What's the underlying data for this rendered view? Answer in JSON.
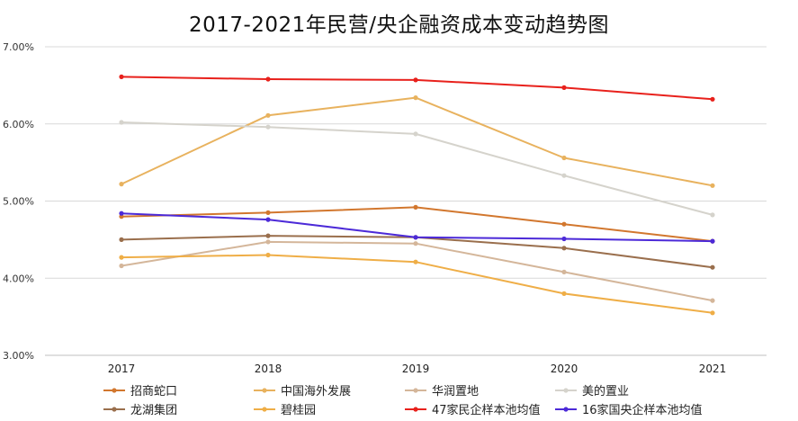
{
  "chart_data": {
    "type": "line",
    "title": "2017-2021年民营/央企融资成本变动趋势图",
    "xlabel": "",
    "ylabel": "",
    "x": [
      "2017",
      "2018",
      "2019",
      "2020",
      "2021"
    ],
    "ylim": [
      3.0,
      7.0
    ],
    "yticks": [
      "3.00%",
      "4.00%",
      "5.00%",
      "6.00%",
      "7.00%"
    ],
    "ytick_values": [
      3.0,
      4.0,
      5.0,
      6.0,
      7.0
    ],
    "grid": "horizontal",
    "legend_position": "bottom",
    "series": [
      {
        "name": "招商蛇口",
        "color": "#D2772E",
        "values": [
          4.8,
          4.85,
          4.92,
          4.7,
          4.48
        ]
      },
      {
        "name": "中国海外发展",
        "color": "#E8B25E",
        "values": [
          5.22,
          6.11,
          6.34,
          5.56,
          5.2
        ]
      },
      {
        "name": "华润置地",
        "color": "#D4B69A",
        "values": [
          4.16,
          4.47,
          4.45,
          4.08,
          3.71
        ]
      },
      {
        "name": "美的置业",
        "color": "#D5D3CC",
        "values": [
          6.02,
          5.96,
          5.87,
          5.33,
          4.82
        ]
      },
      {
        "name": "龙湖集团",
        "color": "#9A6F4D",
        "values": [
          4.5,
          4.55,
          4.53,
          4.39,
          4.14
        ]
      },
      {
        "name": "碧桂园",
        "color": "#EFAE47",
        "values": [
          4.27,
          4.3,
          4.21,
          3.8,
          3.55
        ]
      },
      {
        "name": "47家民企样本池均值",
        "color": "#E8211C",
        "values": [
          6.61,
          6.58,
          6.57,
          6.47,
          6.32
        ]
      },
      {
        "name": "16家国央企样本池均值",
        "color": "#4C2AD8",
        "values": [
          4.84,
          4.76,
          4.53,
          4.51,
          4.48
        ]
      }
    ]
  }
}
